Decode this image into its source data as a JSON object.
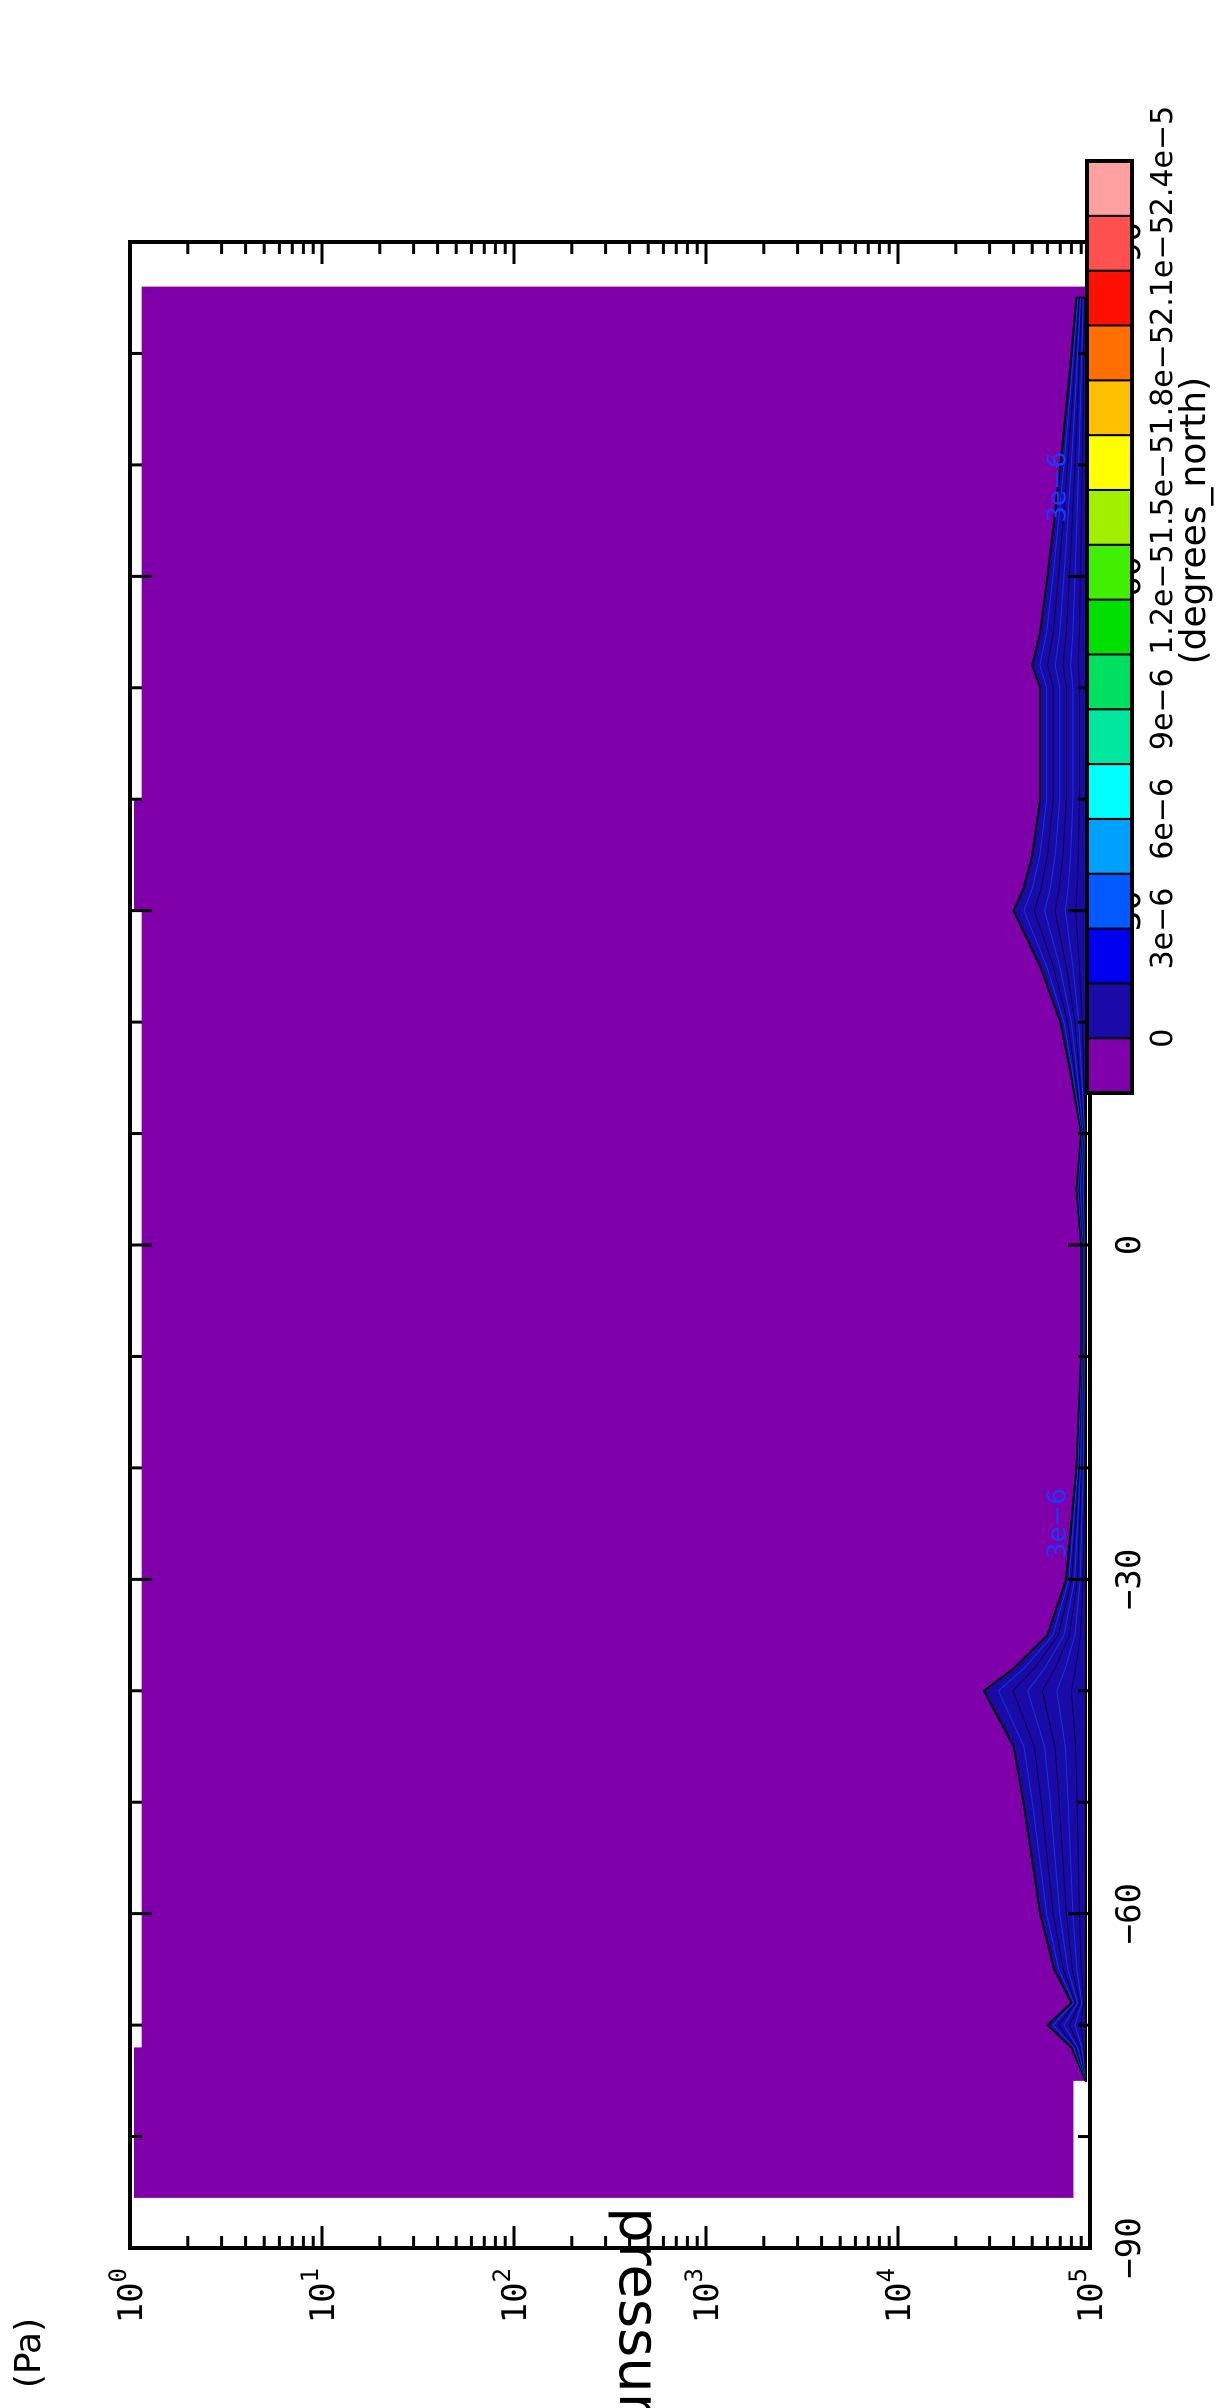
{
  "chart_data": {
    "type": "heatmap",
    "title": "",
    "xlabel": "(degrees_north)",
    "ylabel": "pressure",
    "yunits": "(Pa)",
    "xlim": [
      -90,
      90
    ],
    "ylim": [
      1,
      100000
    ],
    "yscale": "log",
    "x_ticks": [
      "−90",
      "−60",
      "−30",
      "0",
      "30",
      "60",
      "90"
    ],
    "y_ticks": [
      {
        "base": "10",
        "exp": "0"
      },
      {
        "base": "10",
        "exp": "1"
      },
      {
        "base": "10",
        "exp": "2"
      },
      {
        "base": "10",
        "exp": "3"
      },
      {
        "base": "10",
        "exp": "4"
      },
      {
        "base": "10",
        "exp": "5"
      }
    ],
    "colorbar": {
      "levels": [
        "0",
        "3e−6",
        "6e−6",
        "9e−6",
        "1.2e−5",
        "1.5e−5",
        "1.8e−5",
        "2.1e−5",
        "2.4e−5"
      ],
      "colors": [
        "#7f00aa",
        "#1a0aa8",
        "#0000f0",
        "#005aff",
        "#00a0ff",
        "#00ffff",
        "#00e8a0",
        "#00e060",
        "#00e000",
        "#40f000",
        "#a0f000",
        "#ffff00",
        "#ffc000",
        "#ff7000",
        "#ff1000",
        "#ff5050",
        "#ffa0a0"
      ]
    },
    "field": {
      "background_color": "#7f00aa",
      "low_value_color": "#1a0aa8",
      "profile_lat": [
        -75,
        -72,
        -70,
        -68,
        -65,
        -60,
        -50,
        -45,
        -40,
        -38,
        -35,
        -30,
        -20,
        -10,
        0,
        5,
        10,
        15,
        20,
        25,
        30,
        32,
        35,
        40,
        45,
        50,
        52,
        55,
        60,
        65,
        70,
        75,
        80,
        85
      ],
      "profile_p": [
        95000,
        80000,
        60000,
        80000,
        65000,
        55000,
        45000,
        40000,
        28000,
        40000,
        60000,
        75000,
        85000,
        90000,
        90000,
        85000,
        90000,
        80000,
        70000,
        55000,
        40000,
        45000,
        50000,
        55000,
        55000,
        55000,
        50000,
        55000,
        60000,
        65000,
        70000,
        75000,
        80000,
        85000
      ]
    },
    "contour_labels": [
      {
        "text": "3e−6",
        "lat": -25,
        "p": 80000
      },
      {
        "text": "3e−6",
        "lat": 68,
        "p": 80000
      }
    ]
  }
}
